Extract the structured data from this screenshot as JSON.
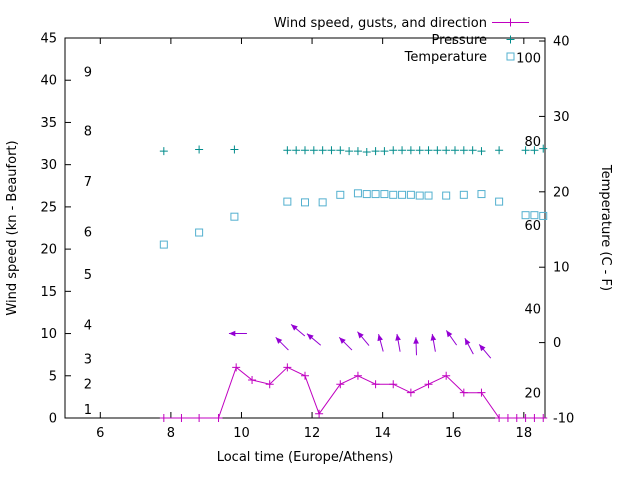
{
  "chart_data": {
    "type": "line",
    "title": "",
    "xlabel": "Local time (Europe/Athens)",
    "ylabel": "Wind speed (kn - Beaufort)",
    "y2label": "Temperature (C - F)",
    "legend": [
      "Wind speed, gusts, and direction",
      "Pressure",
      "Temperature"
    ],
    "legend_position": "top-right-inside",
    "grid": false,
    "colors": {
      "wind": "#c000c0",
      "arrow": "#9400d3",
      "pressure": "#008b8b",
      "temperature": "#53b0cf",
      "axis": "#000000"
    },
    "axes": {
      "x": {
        "min": 5,
        "max": 18.6,
        "ticks": [
          6,
          8,
          10,
          12,
          14,
          16,
          18
        ]
      },
      "y": {
        "min": 0,
        "max": 45,
        "ticks": [
          0,
          5,
          10,
          15,
          20,
          25,
          30,
          35,
          40,
          45
        ],
        "beaufort": {
          "labels": [
            "1",
            "2",
            "3",
            "4",
            "5",
            "6",
            "7",
            "8",
            "9"
          ],
          "kn": [
            1,
            4,
            7,
            11,
            17,
            22,
            28,
            34,
            41
          ]
        }
      },
      "y2": {
        "min": -10,
        "max": 40.4,
        "ticks": [
          -10,
          0,
          10,
          20,
          30,
          40
        ],
        "fahrenheit_labels": [
          20,
          40,
          60,
          80,
          100
        ]
      }
    },
    "series": [
      {
        "name": "Wind speed, gusts, and direction",
        "axis": "y",
        "marker": "plus",
        "line": true,
        "points": [
          [
            7.8,
            0
          ],
          [
            8.3,
            0
          ],
          [
            8.8,
            0
          ],
          [
            9.35,
            0
          ],
          [
            9.85,
            6
          ],
          [
            10.3,
            4.5
          ],
          [
            10.8,
            4
          ],
          [
            11.3,
            6
          ],
          [
            11.8,
            5
          ],
          [
            12.2,
            0.5
          ],
          [
            12.8,
            4
          ],
          [
            13.3,
            5
          ],
          [
            13.8,
            4
          ],
          [
            14.3,
            4
          ],
          [
            14.8,
            3
          ],
          [
            15.3,
            4
          ],
          [
            15.8,
            5
          ],
          [
            16.3,
            3
          ],
          [
            16.8,
            3
          ],
          [
            17.3,
            0
          ],
          [
            17.55,
            0
          ],
          [
            17.8,
            0
          ],
          [
            18.05,
            0
          ],
          [
            18.3,
            0
          ],
          [
            18.55,
            0
          ]
        ]
      },
      {
        "name": "Pressure",
        "axis": "y",
        "marker": "plus",
        "line": false,
        "points": [
          [
            7.8,
            31.6
          ],
          [
            8.8,
            31.8
          ],
          [
            9.8,
            31.8
          ],
          [
            11.3,
            31.7
          ],
          [
            11.55,
            31.7
          ],
          [
            11.8,
            31.7
          ],
          [
            12.05,
            31.7
          ],
          [
            12.3,
            31.7
          ],
          [
            12.55,
            31.7
          ],
          [
            12.8,
            31.7
          ],
          [
            13.05,
            31.6
          ],
          [
            13.3,
            31.6
          ],
          [
            13.55,
            31.5
          ],
          [
            13.8,
            31.6
          ],
          [
            14.05,
            31.6
          ],
          [
            14.3,
            31.7
          ],
          [
            14.55,
            31.7
          ],
          [
            14.8,
            31.7
          ],
          [
            15.05,
            31.7
          ],
          [
            15.3,
            31.7
          ],
          [
            15.55,
            31.7
          ],
          [
            15.8,
            31.7
          ],
          [
            16.05,
            31.7
          ],
          [
            16.3,
            31.7
          ],
          [
            16.55,
            31.7
          ],
          [
            16.8,
            31.6
          ],
          [
            17.3,
            31.7
          ],
          [
            18.05,
            31.7
          ],
          [
            18.3,
            31.7
          ],
          [
            18.55,
            31.9
          ]
        ]
      },
      {
        "name": "Temperature",
        "axis": "y2",
        "marker": "square",
        "line": false,
        "points": [
          [
            7.8,
            13.0
          ],
          [
            8.8,
            14.6
          ],
          [
            9.8,
            16.7
          ],
          [
            11.3,
            18.7
          ],
          [
            11.8,
            18.6
          ],
          [
            12.3,
            18.6
          ],
          [
            12.8,
            19.6
          ],
          [
            13.3,
            19.8
          ],
          [
            13.55,
            19.7
          ],
          [
            13.8,
            19.7
          ],
          [
            14.05,
            19.7
          ],
          [
            14.3,
            19.6
          ],
          [
            14.55,
            19.6
          ],
          [
            14.8,
            19.6
          ],
          [
            15.05,
            19.5
          ],
          [
            15.3,
            19.5
          ],
          [
            15.8,
            19.5
          ],
          [
            16.3,
            19.6
          ],
          [
            16.8,
            19.7
          ],
          [
            17.3,
            18.7
          ],
          [
            18.05,
            16.9
          ],
          [
            18.3,
            16.9
          ],
          [
            18.55,
            16.8
          ]
        ]
      }
    ],
    "wind_arrows": [
      [
        9.9,
        10,
        180
      ],
      [
        11.15,
        8.8,
        135
      ],
      [
        11.6,
        10.4,
        140
      ],
      [
        12.05,
        9.3,
        140
      ],
      [
        12.95,
        8.8,
        135
      ],
      [
        13.45,
        9.4,
        130
      ],
      [
        13.95,
        8.9,
        105
      ],
      [
        14.45,
        8.9,
        100
      ],
      [
        14.95,
        8.5,
        92
      ],
      [
        15.45,
        8.9,
        100
      ],
      [
        15.95,
        9.5,
        125
      ],
      [
        16.45,
        8.5,
        118
      ],
      [
        16.9,
        7.9,
        130
      ]
    ]
  }
}
